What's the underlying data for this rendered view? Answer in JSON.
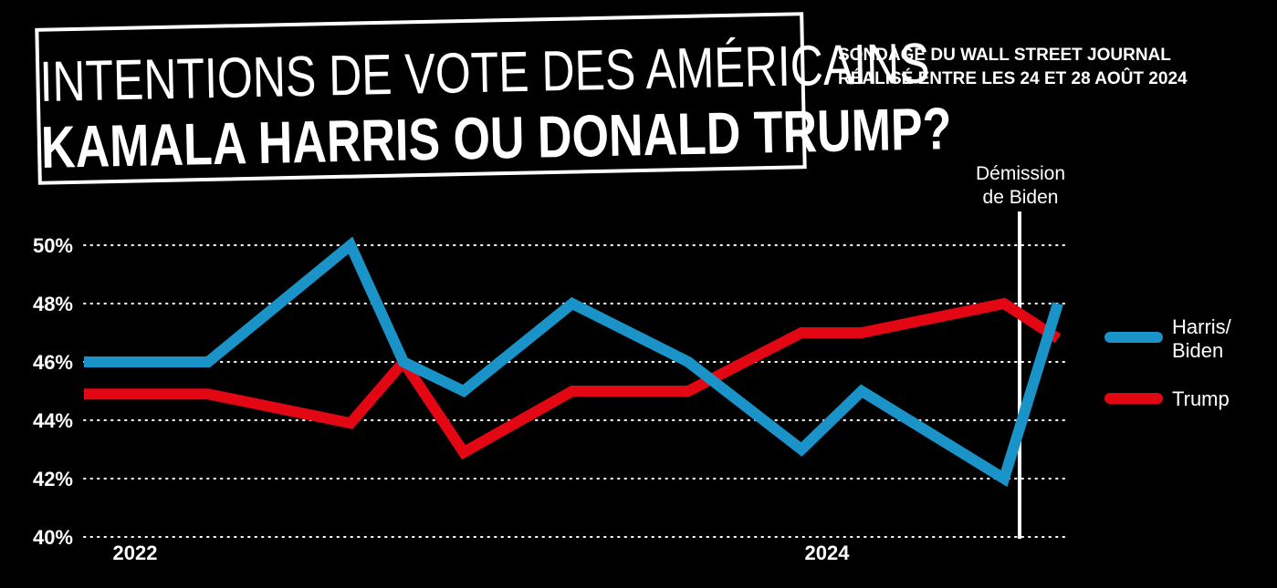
{
  "header": {
    "title_line1": "INTENTIONS DE VOTE DES AMÉRICAINS",
    "title_line2": "KAMALA HARRIS OU DONALD TRUMP?",
    "subtitle_line1": "SONDAGE DU WALL STREET JOURNAL",
    "subtitle_line2": "RÉALISÉ ENTRE LES 24 ET 28 AOÛT 2024"
  },
  "chart_data": {
    "type": "line",
    "title": "INTENTIONS DE VOTE DES AMÉRICAINS KAMALA HARRIS OU DONALD TRUMP?",
    "subtitle": "SONDAGE DU WALL STREET JOURNAL RÉALISÉ ENTRE LES 24 ET 28 AOÛT 2024",
    "xlabel": "",
    "ylabel": "",
    "x_tick_labels": [
      "2022",
      "2024"
    ],
    "y_ticks": [
      40,
      42,
      44,
      46,
      48,
      50
    ],
    "y_tick_labels": [
      "40%",
      "42%",
      "44%",
      "46%",
      "48%",
      "50%"
    ],
    "ylim": [
      40,
      50
    ],
    "grid": true,
    "legend_position": "right",
    "series": [
      {
        "name": "Harris/ Biden",
        "legend_lines": [
          "Harris/",
          "Biden"
        ],
        "color": "#1a93c8",
        "values": [
          46,
          46,
          50,
          46,
          45,
          48,
          46,
          43,
          45,
          42,
          48
        ]
      },
      {
        "name": "Trump",
        "legend_lines": [
          "Trump"
        ],
        "color": "#e30613",
        "values": [
          44.9,
          44.9,
          43.9,
          46,
          42.9,
          45,
          45,
          47,
          47,
          48,
          46.8
        ]
      }
    ],
    "annotation": {
      "lines": [
        "Démission",
        "de Biden"
      ]
    }
  }
}
